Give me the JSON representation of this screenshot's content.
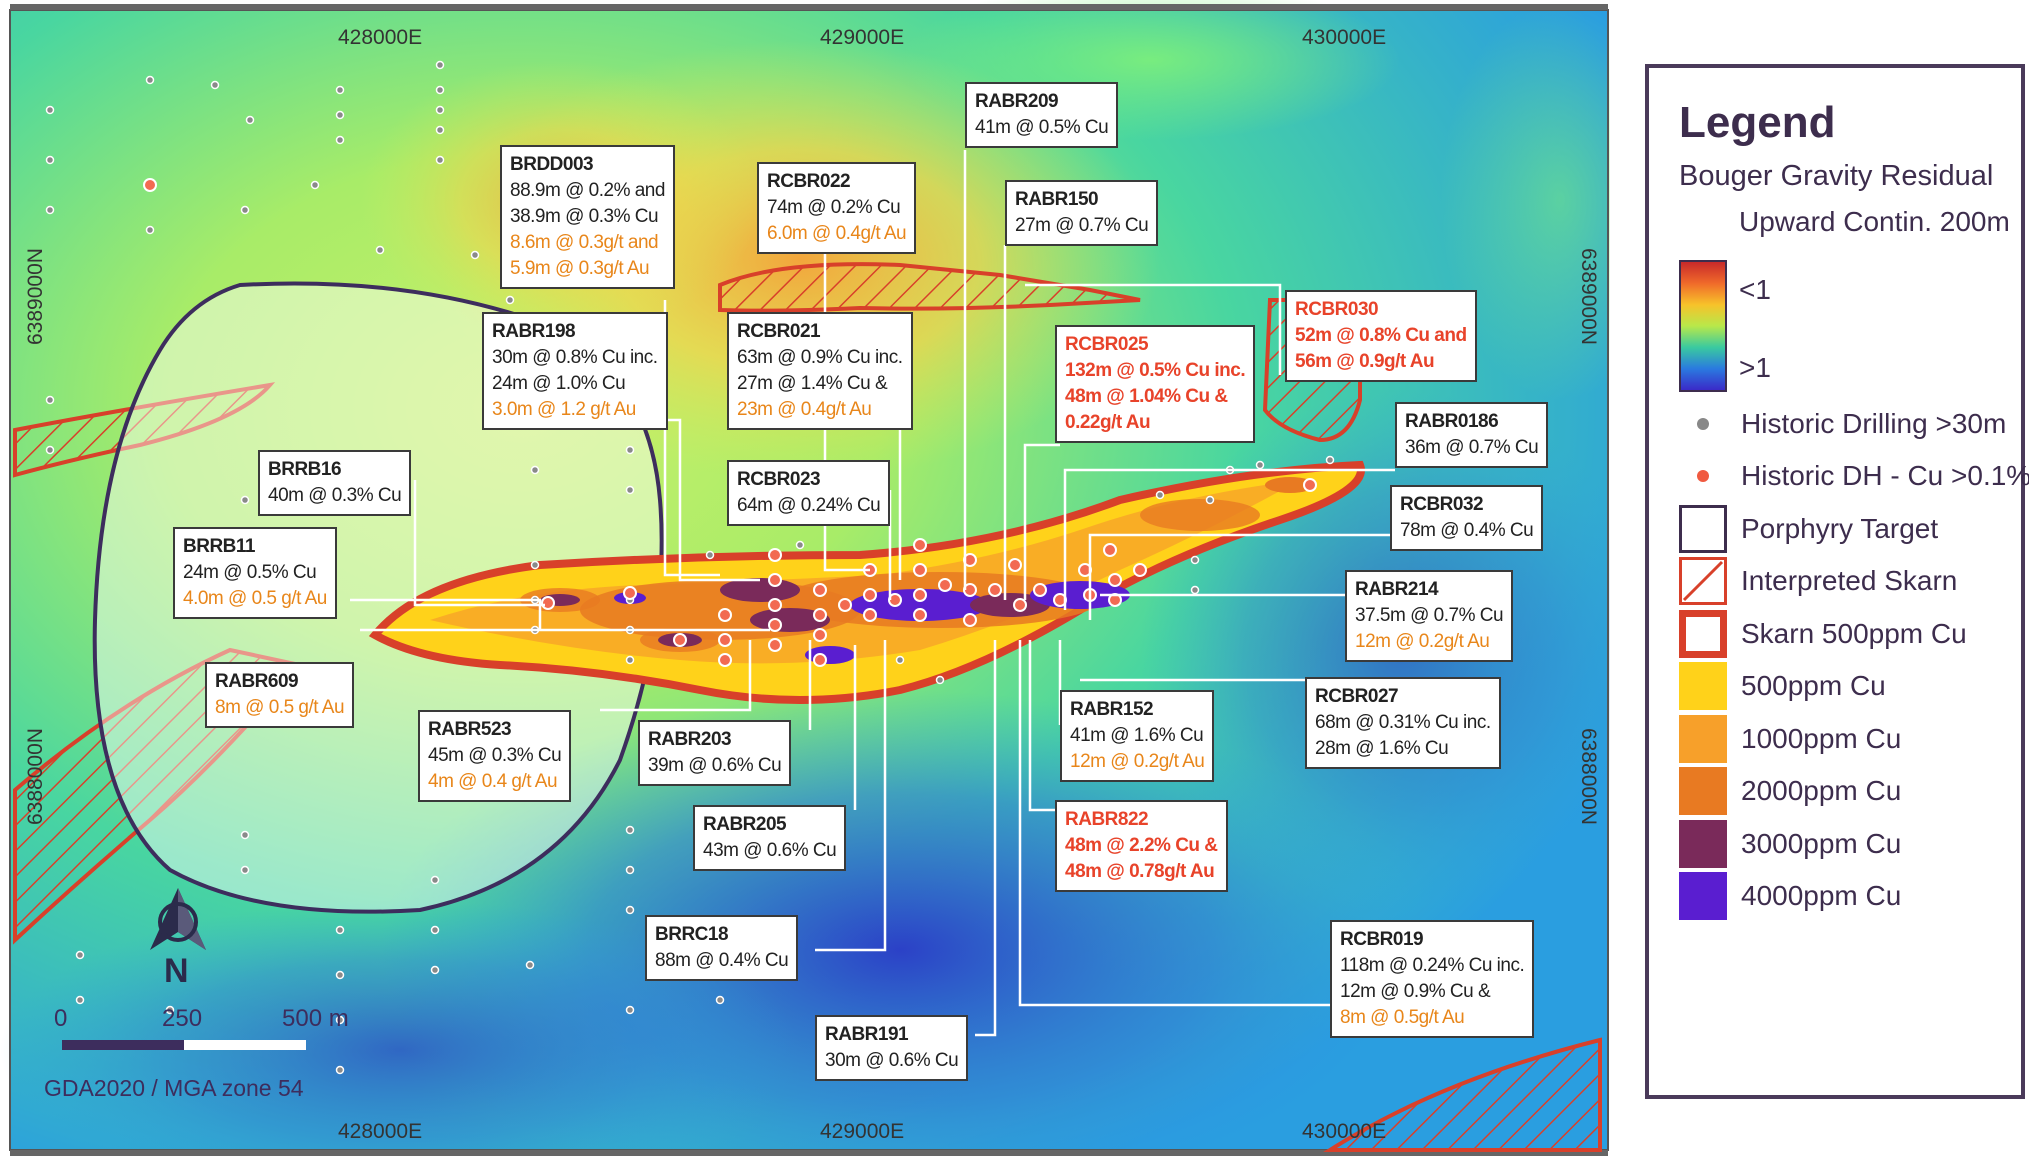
{
  "grid": {
    "top_labels": [
      "428000E",
      "429000E",
      "430000E"
    ],
    "bottom_labels": [
      "428000E",
      "429000E",
      "430000E"
    ],
    "left_labels": [
      "6389000N",
      "6388000N"
    ],
    "right_labels": [
      "6389000N",
      "6388000N"
    ]
  },
  "callouts": [
    {
      "id": "BRDD003",
      "lines": [
        "88.9m @ 0.2% and",
        "38.9m @ 0.3% Cu"
      ],
      "au": [
        "8.6m @ 0.3g/t and",
        "5.9m @ 0.3g/t Au"
      ],
      "red": false
    },
    {
      "id": "RCBR022",
      "lines": [
        "74m @ 0.2% Cu"
      ],
      "au": [
        "6.0m @  0.4g/t Au"
      ],
      "red": false
    },
    {
      "id": "RABR209",
      "lines": [
        "41m @ 0.5% Cu"
      ],
      "au": [],
      "red": false
    },
    {
      "id": "RABR150",
      "lines": [
        "27m @ 0.7% Cu"
      ],
      "au": [],
      "red": false
    },
    {
      "id": "RABR198",
      "lines": [
        "30m @ 0.8% Cu inc.",
        "24m @ 1.0% Cu"
      ],
      "au": [
        "3.0m @ 1.2 g/t Au"
      ],
      "red": false
    },
    {
      "id": "RCBR021",
      "lines": [
        "63m @ 0.9% Cu inc.",
        "27m @ 1.4% Cu &"
      ],
      "au": [
        "23m @ 0.4g/t Au"
      ],
      "red": false
    },
    {
      "id": "RCBR025",
      "lines": [
        "132m @ 0.5% Cu inc.",
        "48m @ 1.04% Cu &"
      ],
      "au": [
        "0.22g/t Au"
      ],
      "red": true
    },
    {
      "id": "RCBR030",
      "lines": [
        "52m @ 0.8% Cu and"
      ],
      "au": [
        "56m @ 0.9g/t Au"
      ],
      "red": true
    },
    {
      "id": "RABR0186",
      "lines": [
        "36m @ 0.7% Cu"
      ],
      "au": [],
      "red": false
    },
    {
      "id": "BRRB16",
      "lines": [
        "40m @ 0.3% Cu"
      ],
      "au": [],
      "red": false
    },
    {
      "id": "RCBR023",
      "lines": [
        "64m @ 0.24% Cu"
      ],
      "au": [],
      "red": false
    },
    {
      "id": "RCBR032",
      "lines": [
        "78m @ 0.4% Cu"
      ],
      "au": [],
      "red": false
    },
    {
      "id": "BRRB11",
      "lines": [
        "24m @ 0.5% Cu"
      ],
      "au": [
        "4.0m @ 0.5 g/t Au"
      ],
      "red": false
    },
    {
      "id": "RABR214",
      "lines": [
        "37.5m @ 0.7% Cu"
      ],
      "au": [
        "12m @ 0.2g/t Au"
      ],
      "red": false
    },
    {
      "id": "RABR609",
      "lines": [],
      "au": [
        "8m @ 0.5 g/t Au"
      ],
      "red": false
    },
    {
      "id": "RCBR027",
      "lines": [
        "68m @ 0.31% Cu inc.",
        "28m @ 1.6% Cu"
      ],
      "au": [],
      "red": false
    },
    {
      "id": "RABR523",
      "lines": [
        "45m @ 0.3% Cu"
      ],
      "au": [
        " 4m @ 0.4 g/t Au"
      ],
      "red": false
    },
    {
      "id": "RABR203",
      "lines": [
        "39m @ 0.6% Cu"
      ],
      "au": [],
      "red": false
    },
    {
      "id": "RABR152",
      "lines": [
        "41m @ 1.6% Cu"
      ],
      "au": [
        "12m @ 0.2g/t Au"
      ],
      "red": false
    },
    {
      "id": "RABR205",
      "lines": [
        "43m @ 0.6% Cu"
      ],
      "au": [],
      "red": false
    },
    {
      "id": "RABR822",
      "lines": [
        "48m @ 2.2% Cu &"
      ],
      "au": [
        "48m @ 0.78g/t Au"
      ],
      "red": true
    },
    {
      "id": "BRRC18",
      "lines": [
        "88m @ 0.4% Cu"
      ],
      "au": [],
      "red": false
    },
    {
      "id": "RCBR019",
      "lines": [
        "118m @ 0.24% Cu inc.",
        "12m @ 0.9% Cu &"
      ],
      "au": [
        " 8m @  0.5g/t Au"
      ],
      "red": false
    },
    {
      "id": "RABR191",
      "lines": [
        "30m @ 0.6% Cu"
      ],
      "au": [],
      "red": false
    }
  ],
  "north_label": "N",
  "scale": {
    "zero": "0",
    "mid": "250",
    "end": "500 m"
  },
  "crs": "GDA2020 / MGA zone 54",
  "legend": {
    "title": "Legend",
    "subtitle": "Bouger Gravity Residual",
    "subtitle2": "Upward Contin. 200m",
    "ramp_low": "<1",
    "ramp_high": ">1",
    "items": [
      {
        "label": "Historic Drilling >30m",
        "icon": "grey-dot-icon",
        "color": "#888888"
      },
      {
        "label": "Historic DH - Cu >0.1%",
        "icon": "red-dot-icon",
        "color": "#f05a40"
      },
      {
        "label": "Porphyry Target",
        "icon": "outline-box-icon",
        "color": "#3d2d4d"
      },
      {
        "label": "Interpreted Skarn",
        "icon": "hatched-box-icon",
        "color": "#d8402a"
      },
      {
        "label": "Skarn 500ppm Cu",
        "icon": "red-outline-box-icon",
        "color": "#d8402a"
      },
      {
        "label": "500ppm Cu",
        "icon": "swatch-icon",
        "color": "#ffd21a"
      },
      {
        "label": "1000ppm Cu",
        "icon": "swatch-icon",
        "color": "#f7a02a"
      },
      {
        "label": "2000ppm Cu",
        "icon": "swatch-icon",
        "color": "#e87a22"
      },
      {
        "label": "3000ppm Cu",
        "icon": "swatch-icon",
        "color": "#7a2a5a"
      },
      {
        "label": "4000ppm Cu",
        "icon": "swatch-icon",
        "color": "#5a1ed0"
      }
    ]
  }
}
